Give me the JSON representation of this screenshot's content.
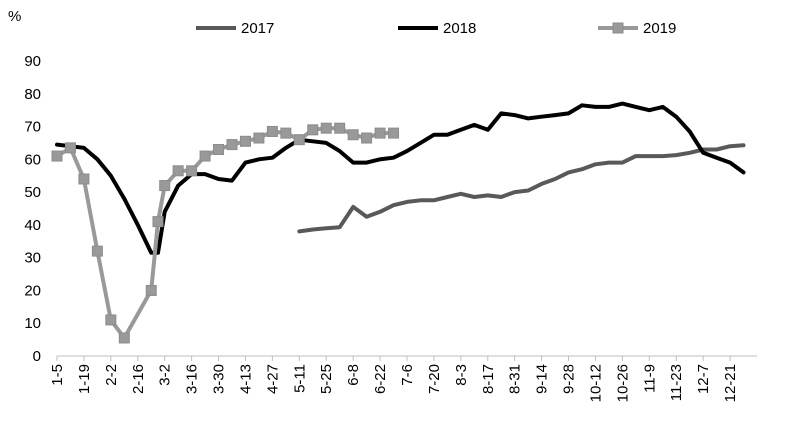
{
  "chart_data": {
    "type": "line",
    "unit_label": "%",
    "ylim": [
      0,
      90
    ],
    "yticks": [
      0,
      10,
      20,
      30,
      40,
      50,
      60,
      70,
      80,
      90
    ],
    "x_domain_weeks": [
      0,
      52
    ],
    "xticks": [
      {
        "label": "1-5",
        "week": 0
      },
      {
        "label": "1-19",
        "week": 2
      },
      {
        "label": "2-2",
        "week": 4
      },
      {
        "label": "2-16",
        "week": 6
      },
      {
        "label": "3-2",
        "week": 8
      },
      {
        "label": "3-16",
        "week": 10
      },
      {
        "label": "3-30",
        "week": 12
      },
      {
        "label": "4-13",
        "week": 14
      },
      {
        "label": "4-27",
        "week": 16
      },
      {
        "label": "5-11",
        "week": 18
      },
      {
        "label": "5-25",
        "week": 20
      },
      {
        "label": "6-8",
        "week": 22
      },
      {
        "label": "6-22",
        "week": 24
      },
      {
        "label": "7-6",
        "week": 26
      },
      {
        "label": "7-20",
        "week": 28
      },
      {
        "label": "8-3",
        "week": 30
      },
      {
        "label": "8-17",
        "week": 32
      },
      {
        "label": "8-31",
        "week": 34
      },
      {
        "label": "9-14",
        "week": 36
      },
      {
        "label": "9-28",
        "week": 38
      },
      {
        "label": "10-12",
        "week": 40
      },
      {
        "label": "10-26",
        "week": 42
      },
      {
        "label": "11-9",
        "week": 44
      },
      {
        "label": "11-23",
        "week": 46
      },
      {
        "label": "12-7",
        "week": 48
      },
      {
        "label": "12-21",
        "week": 50
      }
    ],
    "series": [
      {
        "name": "2017",
        "color": "#595959",
        "marker": "none",
        "x": [
          18,
          19,
          20,
          21,
          22,
          23,
          24,
          25,
          26,
          27,
          28,
          29,
          30,
          31,
          32,
          33,
          34,
          35,
          36,
          37,
          38,
          39,
          40,
          41,
          42,
          43,
          44,
          45,
          46,
          47,
          48,
          49,
          50,
          51
        ],
        "values": [
          38,
          38.6,
          39,
          39.3,
          45.5,
          42.5,
          44,
          46,
          47,
          47.5,
          47.5,
          48.5,
          49.5,
          48.5,
          49,
          48.5,
          50,
          50.5,
          52.5,
          54,
          56,
          57,
          58.5,
          59,
          59,
          61,
          61,
          61,
          61.3,
          62,
          63,
          63,
          64,
          64.3
        ]
      },
      {
        "name": "2018",
        "color": "#000000",
        "marker": "none",
        "x": [
          0,
          1,
          2,
          3,
          4,
          5,
          6,
          7,
          7.5,
          8,
          9,
          10,
          11,
          12,
          13,
          14,
          15,
          16,
          17,
          18,
          19,
          20,
          21,
          22,
          23,
          24,
          25,
          26,
          27,
          28,
          29,
          30,
          31,
          32,
          33,
          34,
          35,
          36,
          37,
          38,
          39,
          40,
          41,
          42,
          43,
          44,
          45,
          46,
          47,
          48,
          49,
          50,
          51
        ],
        "values": [
          64.5,
          64,
          63.5,
          60,
          55,
          48,
          40,
          31.5,
          31.5,
          44,
          52,
          55.5,
          55.5,
          54,
          53.5,
          59,
          60,
          60.5,
          63.5,
          66,
          65.5,
          65,
          62.5,
          59,
          59,
          60,
          60.5,
          62.5,
          65,
          67.5,
          67.5,
          69,
          70.5,
          69,
          74,
          73.5,
          72.5,
          73,
          73.5,
          74,
          76.5,
          76,
          76,
          77,
          76,
          75,
          76,
          73,
          68.5,
          62,
          60.5,
          59,
          56
        ]
      },
      {
        "name": "2019",
        "color": "#999999",
        "marker": "square",
        "x": [
          0,
          1,
          2,
          3,
          4,
          5,
          7,
          7.5,
          8,
          9,
          10,
          11,
          12,
          13,
          14,
          15,
          16,
          17,
          18,
          19,
          20,
          21,
          22,
          23,
          24,
          25
        ],
        "values": [
          61,
          63.5,
          54,
          32,
          11,
          5.5,
          20,
          41,
          52,
          56.5,
          56.5,
          61,
          63,
          64.5,
          65.5,
          66.5,
          68.5,
          68,
          66,
          69,
          69.5,
          69.5,
          67.5,
          66.5,
          68,
          68
        ]
      }
    ]
  }
}
